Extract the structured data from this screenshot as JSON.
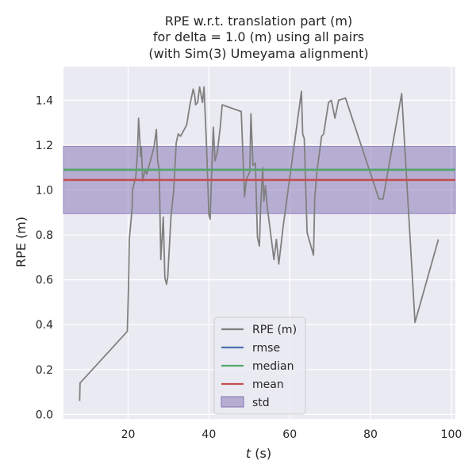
{
  "chart_data": {
    "type": "line",
    "title_lines": [
      "RPE w.r.t. translation part (m)",
      "for delta = 1.0 (m) using all pairs",
      "(with Sim(3) Umeyama alignment)"
    ],
    "xlabel": "t (s)",
    "xlabel_var": "t",
    "xlabel_unit": " (s)",
    "ylabel": "RPE (m)",
    "xlim": [
      4,
      101
    ],
    "ylim": [
      -0.02,
      1.55
    ],
    "x_ticks": [
      20,
      40,
      60,
      80,
      100
    ],
    "y_ticks": [
      0.0,
      0.2,
      0.4,
      0.6,
      0.8,
      1.0,
      1.2,
      1.4
    ],
    "x_tick_labels": [
      "20",
      "40",
      "60",
      "80",
      "100"
    ],
    "y_tick_labels": [
      "0.0",
      "0.2",
      "0.4",
      "0.6",
      "0.8",
      "1.0",
      "1.2",
      "1.4"
    ],
    "grid": true,
    "legend_position": "lower-center",
    "background": "#eaeaf2",
    "series": [
      {
        "name": "RPE (m)",
        "color": "#808080",
        "x": [
          8.0,
          8.1,
          19.8,
          20.1,
          20.3,
          21.0,
          21.1,
          21.9,
          22.3,
          22.6,
          22.9,
          23.1,
          23.3,
          23.6,
          24.2,
          24.6,
          25.2,
          26.4,
          27.0,
          27.3,
          27.7,
          28.1,
          28.7,
          29.1,
          29.5,
          29.8,
          30.6,
          31.3,
          31.9,
          32.4,
          33.0,
          34.5,
          35.3,
          36.1,
          36.5,
          36.7,
          37.2,
          37.7,
          38.4,
          38.8,
          39.4,
          40.0,
          40.3,
          40.8,
          41.1,
          41.5,
          42.1,
          42.8,
          43.3,
          48.0,
          48.8,
          49.3,
          50.1,
          50.4,
          50.9,
          51.5,
          52.0,
          52.5,
          52.8,
          53.3,
          53.6,
          54.0,
          54.4,
          56.1,
          56.7,
          57.3,
          58.4,
          62.9,
          63.2,
          63.6,
          64.3,
          65.9,
          66.2,
          66.8,
          67.9,
          68.4,
          69.6,
          70.3,
          71.2,
          72.1,
          73.8,
          82.1,
          83.1,
          87.7,
          91.0,
          96.8
        ],
        "values": [
          0.06,
          0.14,
          0.37,
          0.57,
          0.78,
          0.92,
          1.0,
          1.06,
          1.16,
          1.32,
          1.22,
          1.15,
          1.19,
          1.04,
          1.09,
          1.07,
          1.11,
          1.19,
          1.27,
          1.13,
          1.09,
          0.69,
          0.88,
          0.61,
          0.58,
          0.61,
          0.88,
          1.0,
          1.21,
          1.25,
          1.24,
          1.29,
          1.38,
          1.45,
          1.42,
          1.38,
          1.39,
          1.46,
          1.39,
          1.46,
          1.2,
          0.89,
          0.87,
          1.14,
          1.28,
          1.13,
          1.17,
          1.28,
          1.38,
          1.35,
          0.97,
          1.05,
          1.08,
          1.34,
          1.11,
          1.12,
          0.79,
          0.75,
          0.92,
          1.1,
          0.95,
          1.02,
          0.93,
          0.69,
          0.78,
          0.67,
          0.84,
          1.44,
          1.25,
          1.23,
          0.81,
          0.71,
          0.97,
          1.09,
          1.24,
          1.25,
          1.39,
          1.4,
          1.32,
          1.4,
          1.41,
          0.96,
          0.96,
          1.43,
          0.41,
          0.78
        ]
      },
      {
        "name": "rmse",
        "color": "#4c72b0",
        "constant": 1.09
      },
      {
        "name": "median",
        "color": "#55a868",
        "constant": 1.09
      },
      {
        "name": "mean",
        "color": "#c44e52",
        "constant": 1.045
      }
    ],
    "std_band": {
      "name": "std",
      "color": "#8172b2",
      "opacity": 0.5,
      "lower": 0.895,
      "upper": 1.195
    }
  }
}
